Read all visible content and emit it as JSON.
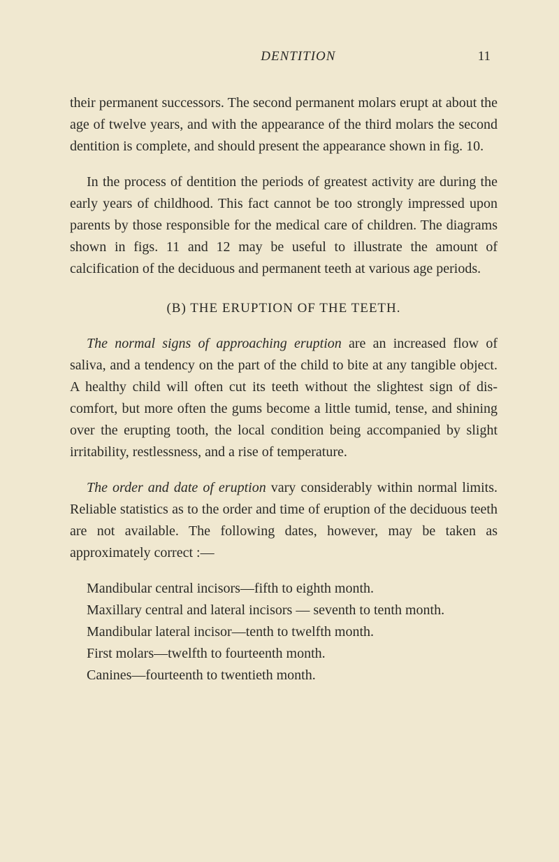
{
  "header": {
    "title": "DENTITION",
    "page_number": "11"
  },
  "paragraphs": {
    "p1": "their permanent successors. The second permanent molars erupt at about the age of twelve years, and with the appearance of the third molars the second dentition is complete, and should present the appearance shown in fig. 10.",
    "p2": "In the process of dentition the periods of greatest activity are during the early years of childhood. This fact cannot be too strongly impressed upon parents by those responsible for the medical care of children. The diagrams shown in figs. 11 and 12 may be useful to illus­trate the amount of calcification of the deciduous and permanent teeth at various age periods."
  },
  "section_heading": "(B) THE ERUPTION OF THE TEETH.",
  "paragraphs2": {
    "p3_italic": "The normal signs of approaching eruption",
    "p3_rest": " are an increased flow of saliva, and a tendency on the part of the child to bite at any tangible object. A healthy child will often cut its teeth without the slightest sign of dis­comfort, but more often the gums become a little tumid, tense, and shining over the erupting tooth, the local condition being accompanied by slight irritability, rest­lessness, and a rise of temperature.",
    "p4_italic": "The order and date of eruption",
    "p4_rest": " vary considerably within normal limits. Reliable statistics as to the order and time of eruption of the deciduous teeth are not available. The following dates, however, may be taken as approximately correct :—"
  },
  "list": {
    "item1": "Mandibular central incisors—fifth to eighth month.",
    "item2": "Maxillary central and lateral incisors — seventh to tenth month.",
    "item3": "Mandibular lateral incisor—tenth to twelfth month.",
    "item4": "First molars—twelfth to fourteenth month.",
    "item5": "Canines—fourteenth to twentieth month."
  }
}
